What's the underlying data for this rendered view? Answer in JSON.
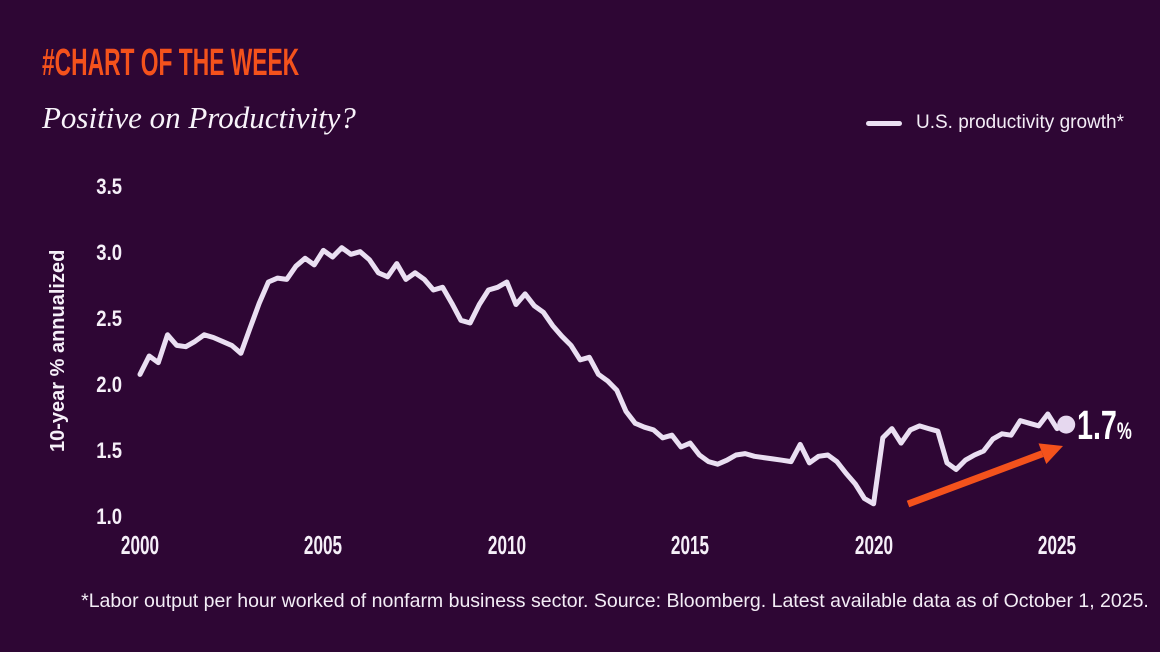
{
  "header": {
    "kicker": "#CHART OF THE WEEK",
    "title": "Positive on Productivity?"
  },
  "legend": {
    "label": "U.S. productivity growth*"
  },
  "annotation": {
    "value": "1.7",
    "unit": "%",
    "end_dot": "last-data-point-marker",
    "trend_arrow": "upward-trend-arrow"
  },
  "footer": {
    "note": "*Labor output per hour worked of nonfarm business sector. Source: Bloomberg. Latest available data as of October 1, 2025."
  },
  "colors": {
    "background": "#2e0634",
    "accent_orange": "#f4521c",
    "line": "#eadff2",
    "dot": "#e6d8ef",
    "text": "#f5eff8"
  },
  "chart_data": {
    "type": "line",
    "title": "Positive on Productivity?",
    "series_name": "U.S. productivity growth*",
    "xlabel": "",
    "ylabel": "10-year % annualized",
    "xlim": [
      2000,
      2025.5
    ],
    "ylim": [
      1.0,
      3.5
    ],
    "x_ticks": [
      2000,
      2005,
      2010,
      2015,
      2020,
      2025
    ],
    "y_ticks": [
      3.5,
      3.0,
      2.5,
      2.0,
      1.5,
      1.0
    ],
    "grid": false,
    "legend_position": "top-right",
    "end_label": "1.7%",
    "x": [
      2000.0,
      2000.25,
      2000.5,
      2000.75,
      2001.0,
      2001.25,
      2001.5,
      2001.75,
      2002.0,
      2002.25,
      2002.5,
      2002.75,
      2003.0,
      2003.25,
      2003.5,
      2003.75,
      2004.0,
      2004.25,
      2004.5,
      2004.75,
      2005.0,
      2005.25,
      2005.5,
      2005.75,
      2006.0,
      2006.25,
      2006.5,
      2006.75,
      2007.0,
      2007.25,
      2007.5,
      2007.75,
      2008.0,
      2008.25,
      2008.5,
      2008.75,
      2009.0,
      2009.25,
      2009.5,
      2009.75,
      2010.0,
      2010.25,
      2010.5,
      2010.75,
      2011.0,
      2011.25,
      2011.5,
      2011.75,
      2012.0,
      2012.25,
      2012.5,
      2012.75,
      2013.0,
      2013.25,
      2013.5,
      2013.75,
      2014.0,
      2014.25,
      2014.5,
      2014.75,
      2015.0,
      2015.25,
      2015.5,
      2015.75,
      2016.0,
      2016.25,
      2016.5,
      2016.75,
      2017.0,
      2017.25,
      2017.5,
      2017.75,
      2018.0,
      2018.25,
      2018.5,
      2018.75,
      2019.0,
      2019.25,
      2019.5,
      2019.75,
      2020.0,
      2020.25,
      2020.5,
      2020.75,
      2021.0,
      2021.25,
      2021.5,
      2021.75,
      2022.0,
      2022.25,
      2022.5,
      2022.75,
      2023.0,
      2023.25,
      2023.5,
      2023.75,
      2024.0,
      2024.25,
      2024.5,
      2024.75,
      2025.0,
      2025.25
    ],
    "values": [
      2.08,
      2.22,
      2.17,
      2.38,
      2.3,
      2.29,
      2.33,
      2.38,
      2.36,
      2.33,
      2.3,
      2.24,
      2.43,
      2.62,
      2.78,
      2.81,
      2.8,
      2.9,
      2.96,
      2.91,
      3.02,
      2.97,
      3.04,
      2.99,
      3.01,
      2.95,
      2.85,
      2.82,
      2.92,
      2.8,
      2.85,
      2.8,
      2.72,
      2.74,
      2.62,
      2.49,
      2.47,
      2.61,
      2.72,
      2.74,
      2.78,
      2.61,
      2.69,
      2.6,
      2.55,
      2.45,
      2.37,
      2.3,
      2.19,
      2.21,
      2.08,
      2.03,
      1.96,
      1.8,
      1.71,
      1.68,
      1.66,
      1.6,
      1.62,
      1.53,
      1.56,
      1.47,
      1.42,
      1.4,
      1.43,
      1.47,
      1.48,
      1.46,
      1.45,
      1.44,
      1.43,
      1.42,
      1.55,
      1.41,
      1.46,
      1.47,
      1.42,
      1.33,
      1.25,
      1.14,
      1.1,
      1.6,
      1.67,
      1.56,
      1.66,
      1.69,
      1.67,
      1.65,
      1.41,
      1.36,
      1.43,
      1.47,
      1.5,
      1.59,
      1.63,
      1.62,
      1.73,
      1.71,
      1.69,
      1.78,
      1.67,
      1.7
    ]
  }
}
